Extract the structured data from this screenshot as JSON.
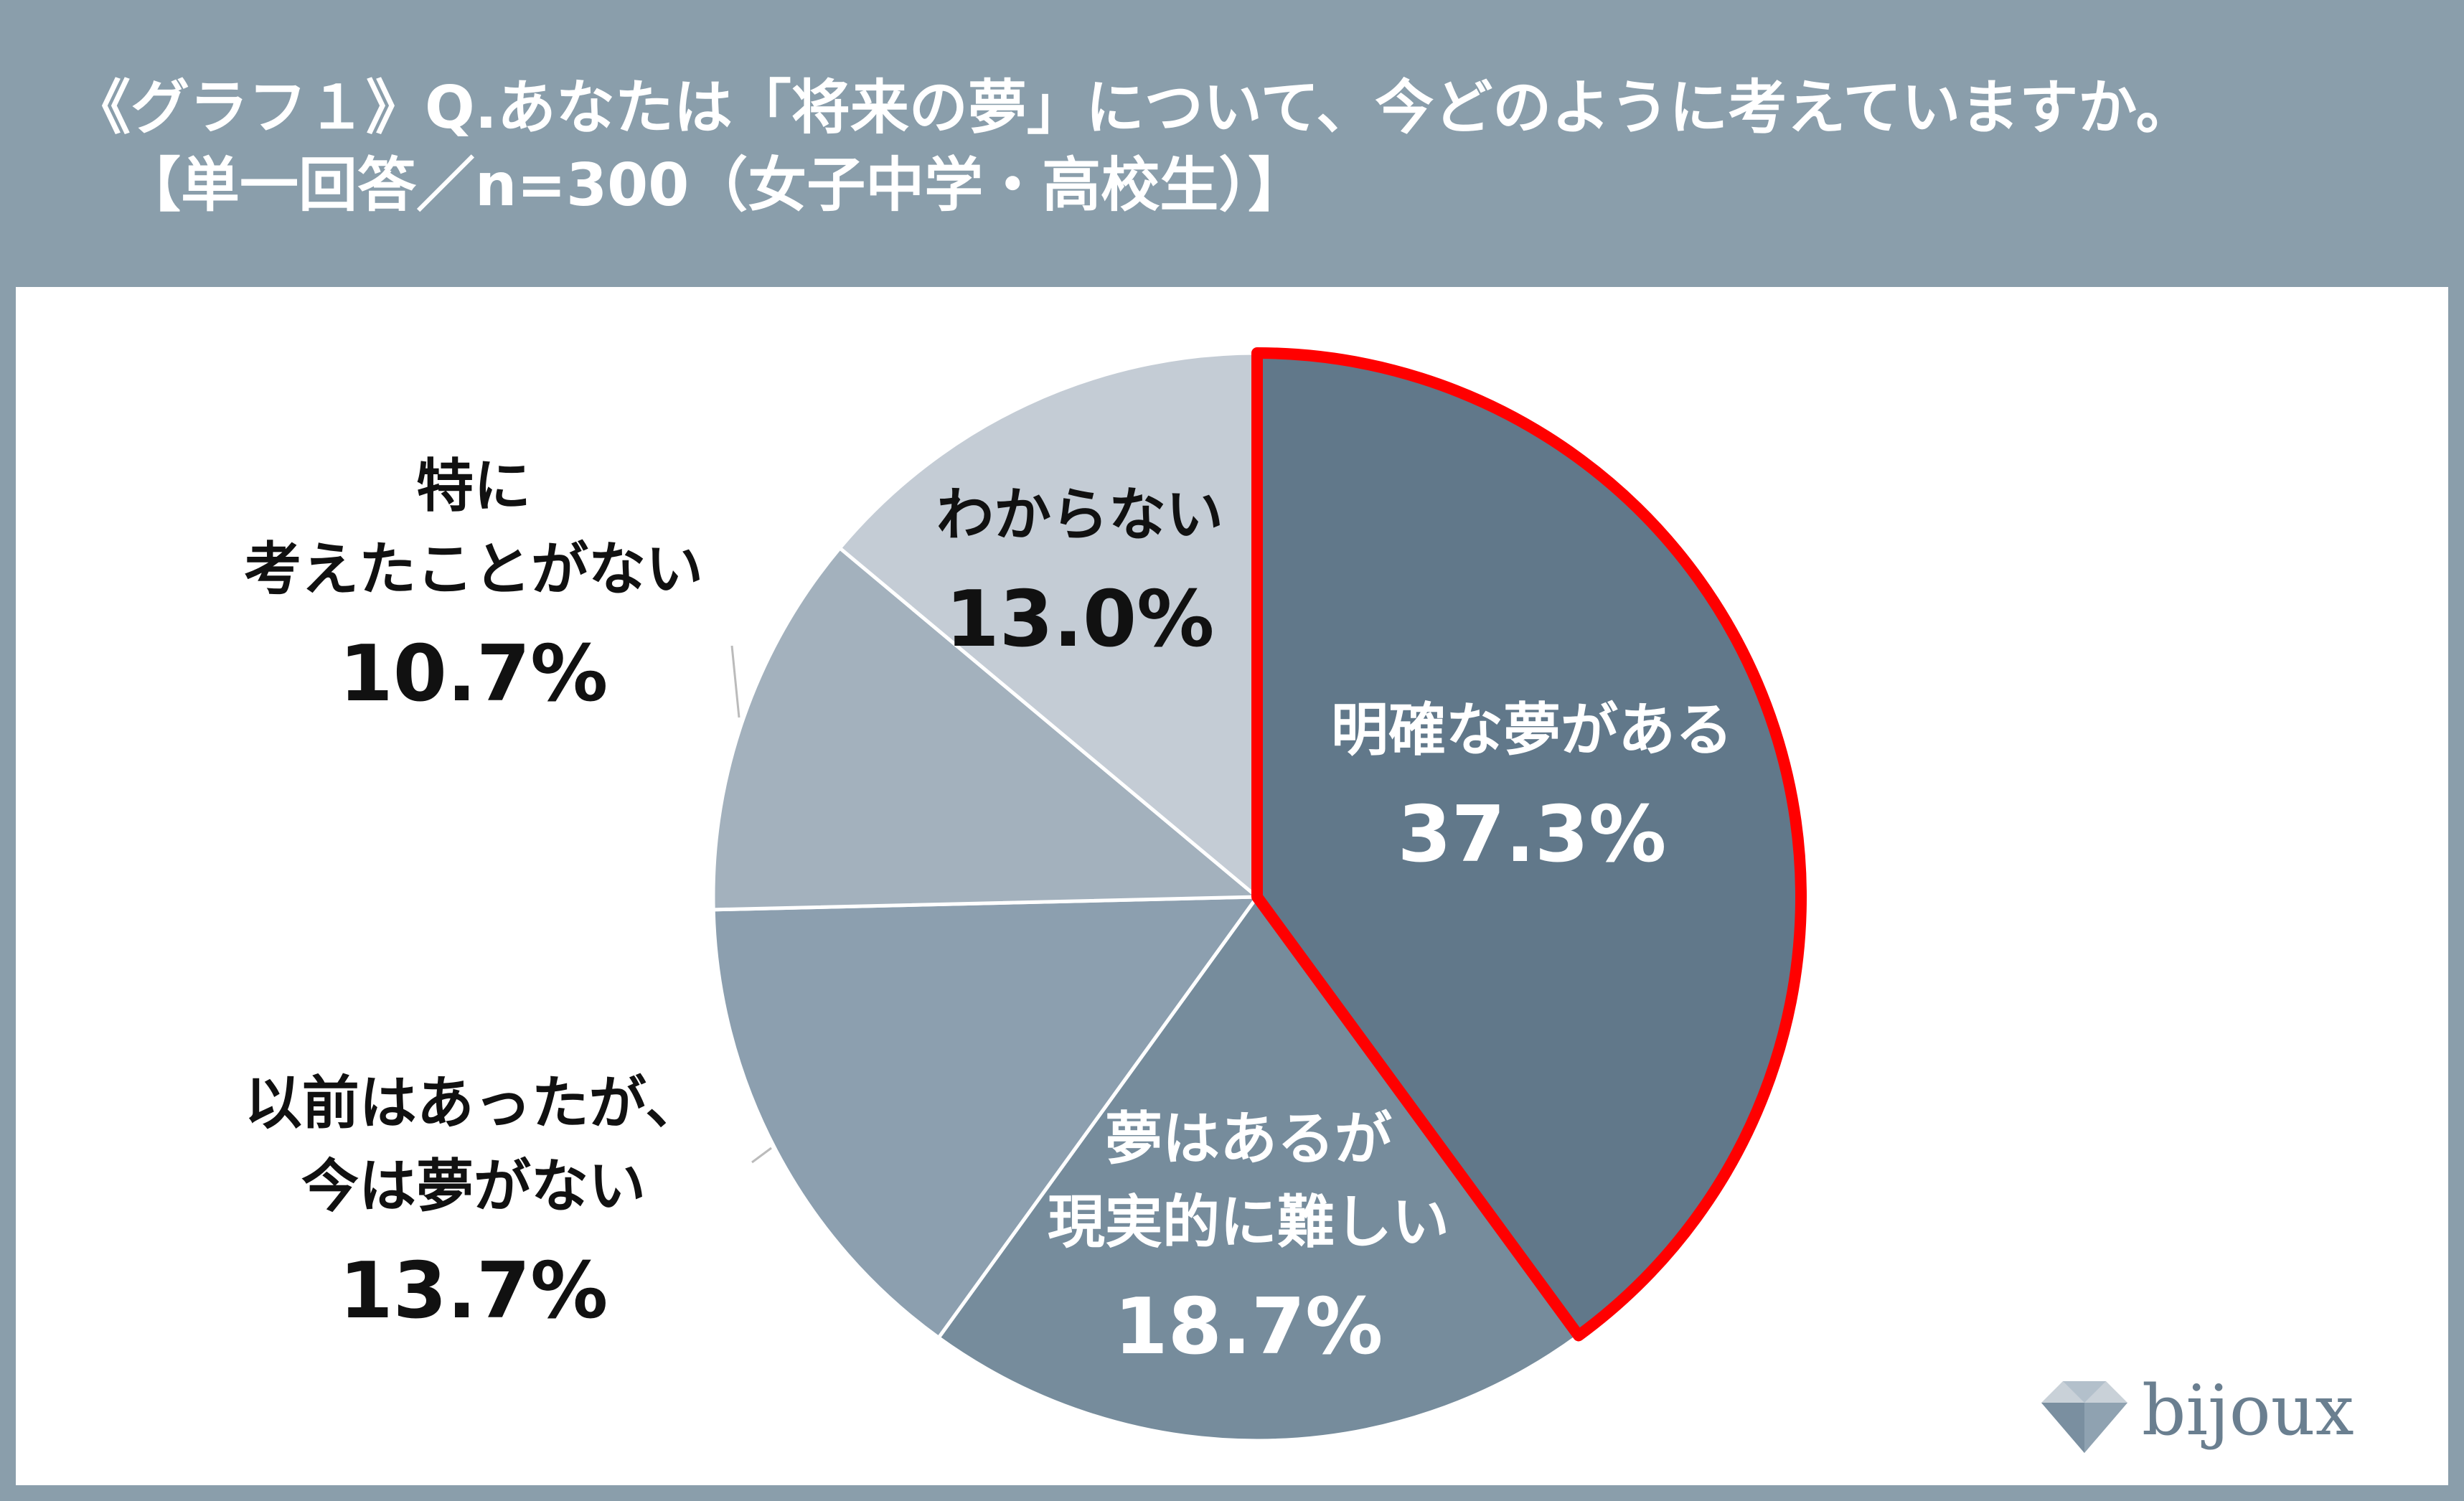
{
  "title": {
    "line1": "《グラフ１》Q.あなたは「将来の夢」について、今どのように考えていますか。",
    "line2": "【単一回答／n=300（女子中学・高校生）】"
  },
  "chart_data": {
    "type": "pie",
    "start_angle_deg": 0,
    "direction": "clockwise",
    "slices": [
      {
        "label_lines": [
          "明確な夢がある"
        ],
        "value": 37.3,
        "value_label": "37.3%",
        "color": "#61788a",
        "highlight": true,
        "highlight_color": "#ff0000"
      },
      {
        "label_lines": [
          "夢はあるが",
          "現実的に難しい"
        ],
        "value": 18.7,
        "value_label": "18.7%",
        "color": "#768c9c"
      },
      {
        "label_lines": [
          "以前はあったが、",
          "今は夢がない"
        ],
        "value": 13.7,
        "value_label": "13.7%",
        "color": "#8c9faf"
      },
      {
        "label_lines": [
          "特に",
          "考えたことがない"
        ],
        "value": 10.7,
        "value_label": "10.7%",
        "color": "#a3b1bd"
      },
      {
        "label_lines": [
          "わからない"
        ],
        "value": 13.0,
        "value_label": "13.0%",
        "color": "#c4ccd5"
      }
    ],
    "label_color_light": "#ffffff",
    "label_color_dark": "#111111"
  },
  "logo": {
    "text": "bijoux",
    "icon": "diamond-icon",
    "color": "#6a7f90"
  }
}
